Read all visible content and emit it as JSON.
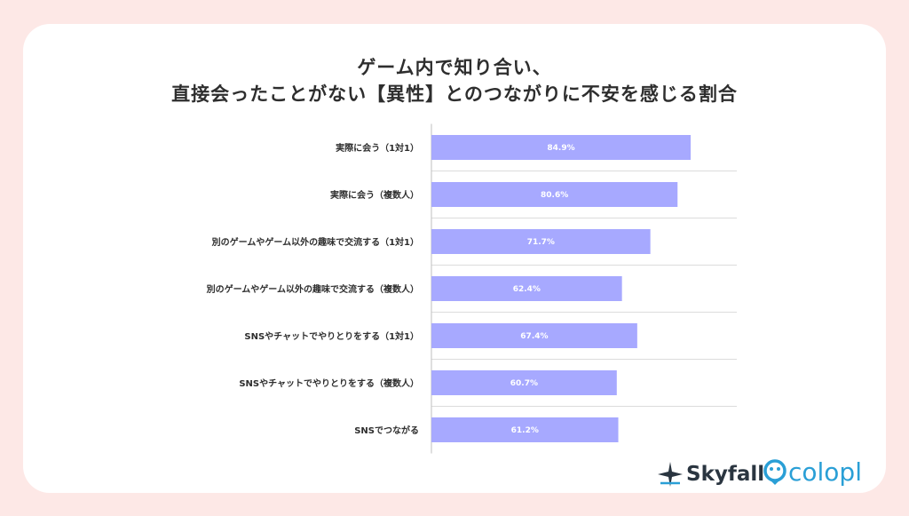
{
  "title": {
    "line1": "ゲーム内で知り合い、",
    "line2": "直接会ったことがない【異性】とのつながりに不安を感じる割合"
  },
  "logos": {
    "skyfall": "Skyfall",
    "colopl": "colopl"
  },
  "colors": {
    "background": "#fde8e6",
    "card": "#ffffff",
    "bar": "#a7a9ff",
    "bar_label": "#ffffff",
    "grid": "#dcdcdc",
    "text": "#2e2e2e",
    "skyfall": "#2a3540",
    "colopl": "#2a9fd6"
  },
  "chart_data": {
    "type": "bar",
    "orientation": "horizontal",
    "title": "ゲーム内で知り合い、直接会ったことがない【異性】とのつながりに不安を感じる割合",
    "categories": [
      "実際に会う（1対1）",
      "実際に会う（複数人）",
      "別のゲームやゲーム以外の趣味で交流する（1対1）",
      "別のゲームやゲーム以外の趣味で交流する（複数人）",
      "SNSやチャットでやりとりをする（1対1）",
      "SNSやチャットでやりとりをする（複数人）",
      "SNSでつながる"
    ],
    "values": [
      84.9,
      80.6,
      71.7,
      62.4,
      67.4,
      60.7,
      61.2
    ],
    "value_labels": [
      "84.9%",
      "80.6%",
      "71.7%",
      "62.4%",
      "67.4%",
      "60.7%",
      "61.2%"
    ],
    "xlim": [
      0,
      100
    ],
    "xlabel": "",
    "ylabel": "",
    "grid": true,
    "legend": "none"
  }
}
